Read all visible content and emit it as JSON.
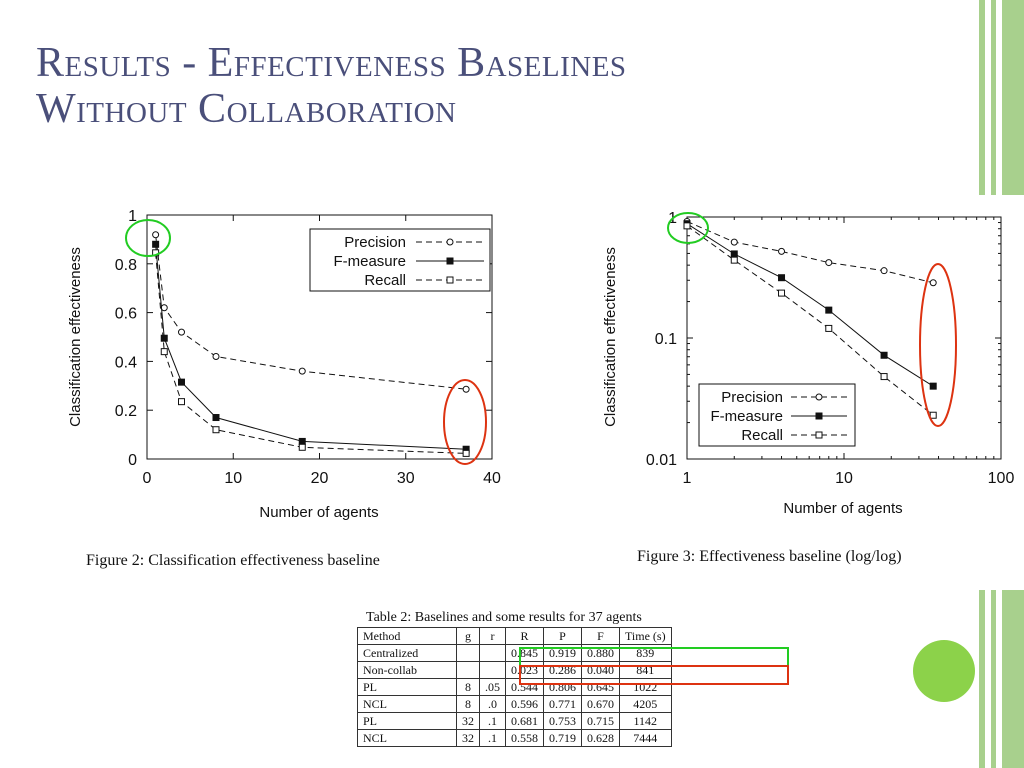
{
  "slide": {
    "title_line1": "Results - Effectiveness Baselines",
    "title_line2": "Without Collaboration"
  },
  "colors": {
    "title": "#4a4f7a",
    "deco_green": "#a8d08d",
    "circle_fill": "#8cd24a",
    "highlight_green": "#22cc22",
    "highlight_red": "#dd3311"
  },
  "figure2": {
    "caption": "Figure 2: Classification effectiveness baseline"
  },
  "figure3": {
    "caption": "Figure 3: Effectiveness baseline (log/log)"
  },
  "chart_data": [
    {
      "type": "line",
      "xlabel": "Number of agents",
      "ylabel": "Classification effectiveness",
      "xlim": [
        0,
        40
      ],
      "ylim": [
        0,
        1
      ],
      "x_ticks": [
        "0",
        "10",
        "20",
        "30",
        "40"
      ],
      "y_ticks": [
        "0",
        "0.2",
        "0.4",
        "0.6",
        "0.8",
        "1"
      ],
      "legend_position": "top-right",
      "x": [
        1,
        2,
        4,
        8,
        18,
        37
      ],
      "series": [
        {
          "name": "Precision",
          "marker": "open-circle",
          "style": "dashed",
          "values": [
            0.919,
            0.62,
            0.52,
            0.42,
            0.36,
            0.286
          ]
        },
        {
          "name": "F-measure",
          "marker": "filled-square",
          "style": "solid",
          "values": [
            0.88,
            0.495,
            0.315,
            0.17,
            0.072,
            0.04
          ]
        },
        {
          "name": "Recall",
          "marker": "open-square",
          "style": "dashed",
          "values": [
            0.845,
            0.44,
            0.235,
            0.12,
            0.048,
            0.023
          ]
        }
      ]
    },
    {
      "type": "line",
      "scale": "log-log",
      "xlabel": "Number of agents",
      "ylabel": "Classification effectiveness",
      "xlim": [
        1,
        100
      ],
      "ylim": [
        0.01,
        1
      ],
      "x_ticks": [
        "1",
        "10",
        "100"
      ],
      "y_ticks": [
        "0.01",
        "0.1",
        "1"
      ],
      "legend_position": "bottom-left",
      "x": [
        1,
        2,
        4,
        8,
        18,
        37
      ],
      "series": [
        {
          "name": "Precision",
          "marker": "open-circle",
          "style": "dashed",
          "values": [
            0.919,
            0.62,
            0.52,
            0.42,
            0.36,
            0.286
          ]
        },
        {
          "name": "F-measure",
          "marker": "filled-square",
          "style": "solid",
          "values": [
            0.88,
            0.495,
            0.315,
            0.17,
            0.072,
            0.04
          ]
        },
        {
          "name": "Recall",
          "marker": "open-square",
          "style": "dashed",
          "values": [
            0.845,
            0.44,
            0.235,
            0.12,
            0.048,
            0.023
          ]
        }
      ]
    }
  ],
  "table": {
    "caption": "Table 2: Baselines and some results for 37 agents",
    "headers": [
      "Method",
      "g",
      "r",
      "R",
      "P",
      "F",
      "Time (s)"
    ],
    "rows": [
      [
        "Centralized",
        "",
        "",
        "0.845",
        "0.919",
        "0.880",
        "839"
      ],
      [
        "Non-collab",
        "",
        "",
        "0.023",
        "0.286",
        "0.040",
        "841"
      ],
      [
        "PL",
        "8",
        ".05",
        "0.544",
        "0.806",
        "0.645",
        "1022"
      ],
      [
        "NCL",
        "8",
        ".0",
        "0.596",
        "0.771",
        "0.670",
        "4205"
      ],
      [
        "PL",
        "32",
        ".1",
        "0.681",
        "0.753",
        "0.715",
        "1142"
      ],
      [
        "NCL",
        "32",
        ".1",
        "0.558",
        "0.719",
        "0.628",
        "7444"
      ]
    ]
  }
}
